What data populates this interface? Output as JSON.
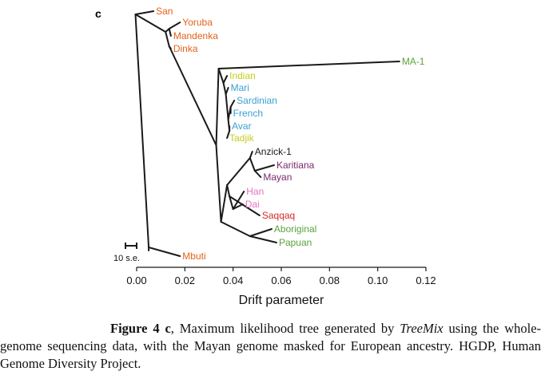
{
  "panel_label": "c",
  "chart_data": {
    "type": "tree",
    "xlabel": "Drift parameter",
    "xlim": [
      0,
      0.12
    ],
    "xticks": [
      "0.00",
      "0.02",
      "0.04",
      "0.06",
      "0.08",
      "0.10",
      "0.12"
    ],
    "scale_bar_label": "10 s.e.",
    "nodes": [
      {
        "id": "root",
        "x": 0.005,
        "children": [
          "n_san_rest",
          "mbuti"
        ]
      },
      {
        "id": "n_san_rest",
        "x": -0.0005,
        "children": [
          "san",
          "n_yor"
        ]
      },
      {
        "id": "n_yor",
        "x": 0.012,
        "children": [
          "n_yoruba_mand",
          "n_dinka_eur"
        ]
      },
      {
        "id": "n_yoruba_mand",
        "x": 0.0135,
        "children": [
          "yoruba",
          "mandenka"
        ]
      },
      {
        "id": "n_dinka_eur",
        "x": 0.0135,
        "children": [
          "dinka",
          "n_ooa"
        ]
      },
      {
        "id": "n_ooa",
        "x": 0.033,
        "children": [
          "n_west",
          "n_east"
        ]
      },
      {
        "id": "n_west",
        "x": 0.034,
        "children": [
          "ma1",
          "n_ind"
        ]
      },
      {
        "id": "n_ind",
        "x": 0.036,
        "children": [
          "indian",
          "n_mari"
        ]
      },
      {
        "id": "n_mari",
        "x": 0.037,
        "children": [
          "mari",
          "n_eur"
        ]
      },
      {
        "id": "n_eur",
        "x": 0.038,
        "children": [
          "n_sard",
          "n_avar"
        ]
      },
      {
        "id": "n_sard",
        "x": 0.039,
        "children": [
          "sardinian",
          "french"
        ]
      },
      {
        "id": "n_avar",
        "x": 0.0385,
        "children": [
          "avar",
          "tadjik"
        ]
      },
      {
        "id": "n_east",
        "x": 0.035,
        "children": [
          "n_amer_asia",
          "n_oce"
        ]
      },
      {
        "id": "n_amer_asia",
        "x": 0.0375,
        "children": [
          "n_amer",
          "n_asia"
        ]
      },
      {
        "id": "n_amer",
        "x": 0.047,
        "children": [
          "anzick",
          "n_kar"
        ]
      },
      {
        "id": "n_kar",
        "x": 0.049,
        "children": [
          "karitiana",
          "mayan"
        ]
      },
      {
        "id": "n_asia",
        "x": 0.0385,
        "children": [
          "n_handai",
          "saqqaq"
        ]
      },
      {
        "id": "n_handai",
        "x": 0.04,
        "children": [
          "han",
          "dai"
        ]
      },
      {
        "id": "n_oce",
        "x": 0.047,
        "children": [
          "aboriginal",
          "papuan"
        ]
      }
    ],
    "leaves": [
      {
        "id": "san",
        "name": "San",
        "x": 0.007,
        "color": "#e2621a"
      },
      {
        "id": "yoruba",
        "name": "Yoruba",
        "x": 0.018,
        "color": "#e2621a"
      },
      {
        "id": "mandenka",
        "name": "Mandenka",
        "x": 0.0142,
        "color": "#e2621a"
      },
      {
        "id": "dinka",
        "name": "Dinka",
        "x": 0.0142,
        "color": "#e2621a"
      },
      {
        "id": "mbuti",
        "name": "Mbuti",
        "x": 0.018,
        "color": "#e2621a"
      },
      {
        "id": "ma1",
        "name": "MA-1",
        "x": 0.109,
        "color": "#5aa33c"
      },
      {
        "id": "indian",
        "name": "Indian",
        "x": 0.0375,
        "color": "#c5cd1d"
      },
      {
        "id": "mari",
        "name": "Mari",
        "x": 0.038,
        "color": "#3b9fd3"
      },
      {
        "id": "sardinian",
        "name": "Sardinian",
        "x": 0.0405,
        "color": "#3b9fd3"
      },
      {
        "id": "french",
        "name": "French",
        "x": 0.039,
        "color": "#3b9fd3"
      },
      {
        "id": "avar",
        "name": "Avar",
        "x": 0.0385,
        "color": "#3b9fd3"
      },
      {
        "id": "tadjik",
        "name": "Tadjik",
        "x": 0.0375,
        "color": "#c5cd1d"
      },
      {
        "id": "anzick",
        "name": "Anzick-1",
        "x": 0.048,
        "color": "#1a1a1a"
      },
      {
        "id": "karitiana",
        "name": "Karitiana",
        "x": 0.057,
        "color": "#7a2a6e"
      },
      {
        "id": "mayan",
        "name": "Mayan",
        "x": 0.0515,
        "color": "#7a2a6e"
      },
      {
        "id": "han",
        "name": "Han",
        "x": 0.0445,
        "color": "#e472c0"
      },
      {
        "id": "dai",
        "name": "Dai",
        "x": 0.044,
        "color": "#e472c0"
      },
      {
        "id": "saqqaq",
        "name": "Saqqaq",
        "x": 0.051,
        "color": "#d42a2a"
      },
      {
        "id": "aboriginal",
        "name": "Aboriginal",
        "x": 0.056,
        "color": "#5aa33c"
      },
      {
        "id": "papuan",
        "name": "Papuan",
        "x": 0.058,
        "color": "#5aa33c"
      }
    ]
  },
  "caption": {
    "figure_ref": "Figure 4 c",
    "text_1": ", Maximum likelihood tree generated by ",
    "software": "TreeMix",
    "text_2": " using the whole-genome sequencing data, with the Mayan genome masked for European ancestry. HGDP, Human Genome Diversity Project."
  }
}
